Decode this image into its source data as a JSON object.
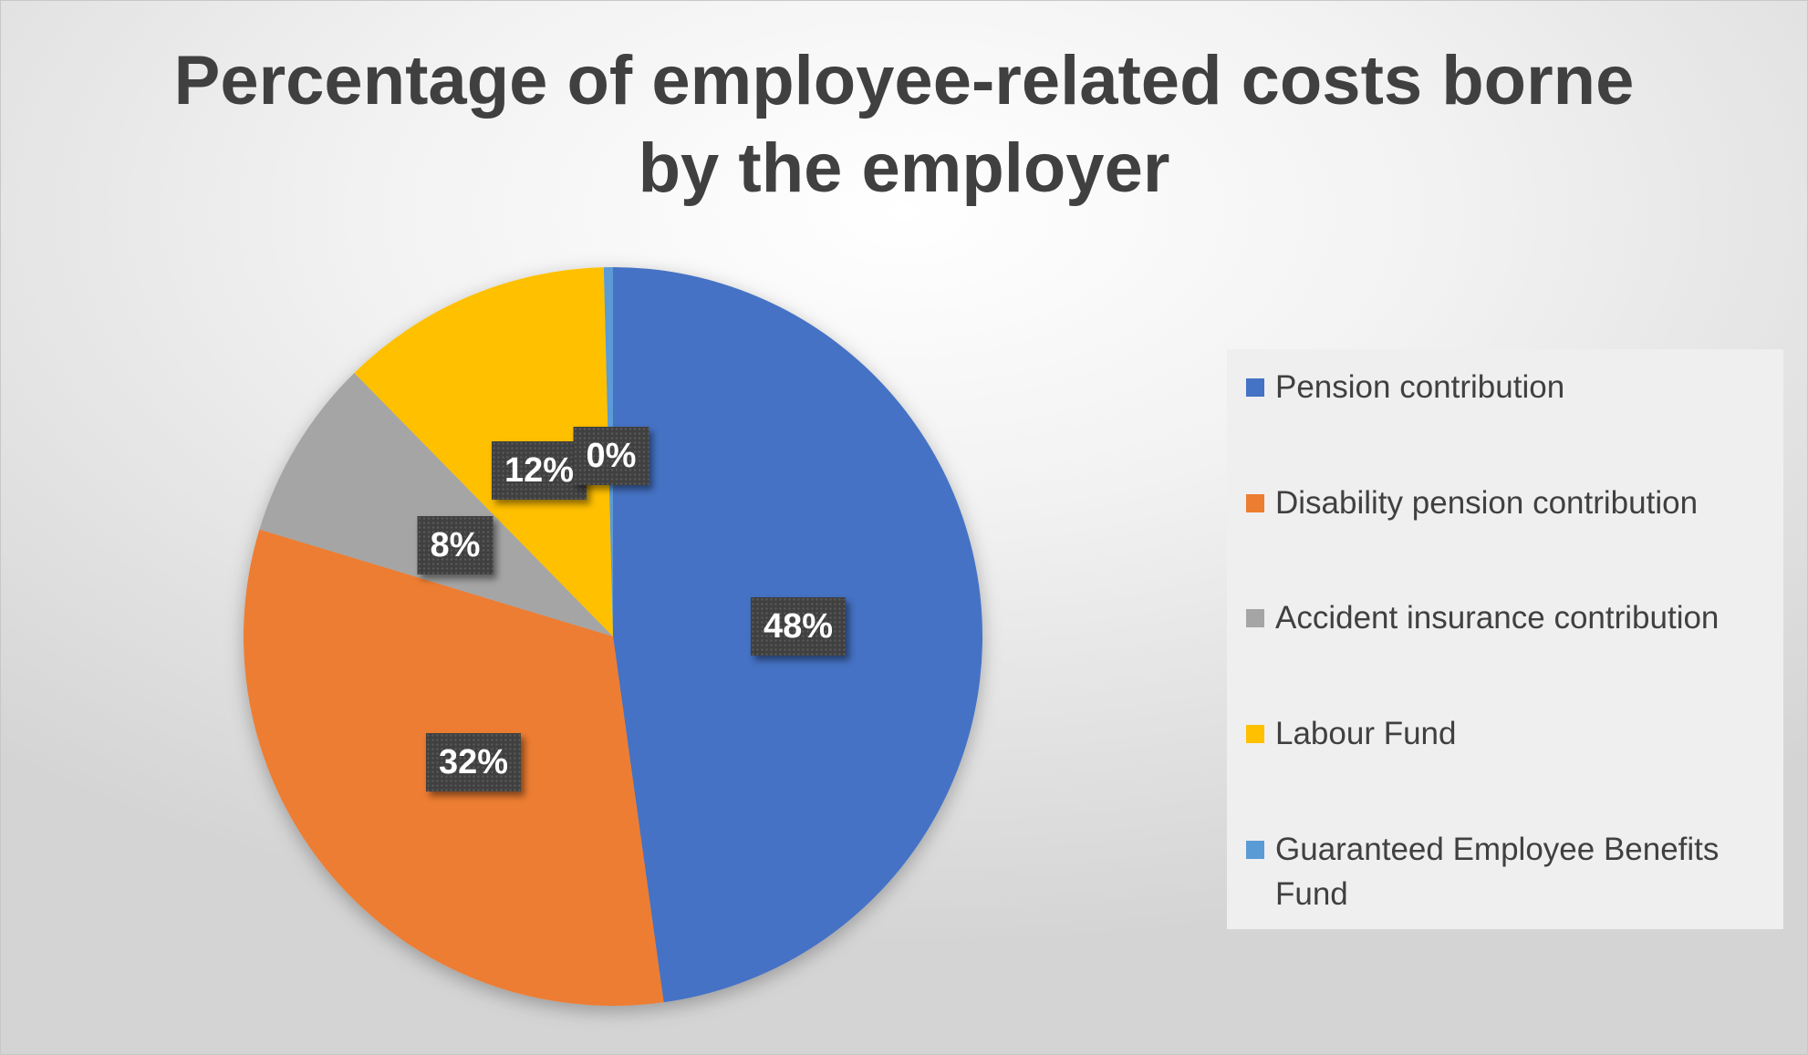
{
  "chart_data": {
    "type": "pie",
    "title": "Percentage of employee-related costs borne by the employer",
    "categories": [
      "Pension contribution",
      "Disability pension contribution",
      "Accident insurance contribution",
      "Labour Fund",
      "Guaranteed Employee Benefits Fund"
    ],
    "values": [
      48,
      32,
      8,
      12,
      0.4
    ],
    "data_labels": [
      "48%",
      "32%",
      "8%",
      "12%",
      "0%"
    ],
    "colors": [
      "#4472C4",
      "#ED7D31",
      "#A5A5A5",
      "#FFC000",
      "#5B9BD5"
    ],
    "legend_position": "right",
    "start_angle_deg": 0,
    "direction": "clockwise"
  }
}
